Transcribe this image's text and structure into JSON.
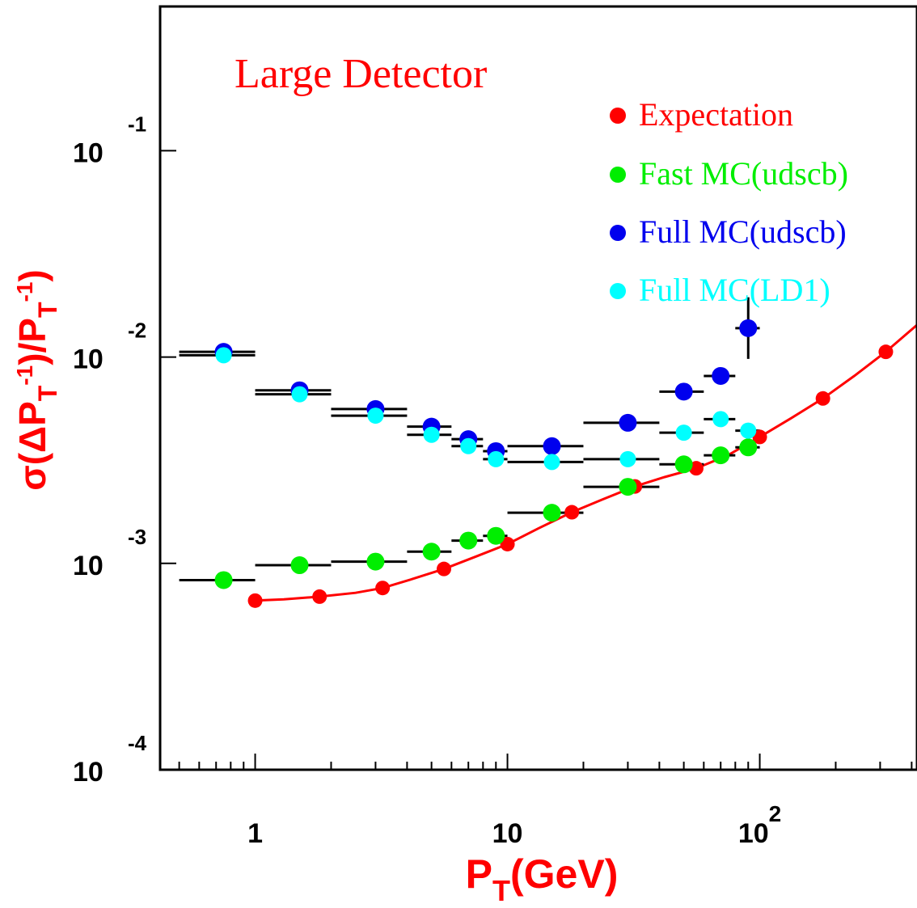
{
  "chart_data": {
    "type": "scatter",
    "title": "Large Detector",
    "xlabel": "P_T(GeV)",
    "ylabel": "σ(ΔP_T^-1)/P_T^-1",
    "xscale": "log",
    "yscale": "log",
    "xlim": [
      0.42,
      420
    ],
    "ylim": [
      0.0001,
      0.5
    ],
    "x_tick_labels": [
      {
        "value": 1,
        "base": "1",
        "exp": ""
      },
      {
        "value": 10,
        "base": "10",
        "exp": ""
      },
      {
        "value": 100,
        "base": "10",
        "exp": "2"
      }
    ],
    "y_tick_labels": [
      {
        "value": 0.0001,
        "base": "10",
        "exp": "-4"
      },
      {
        "value": 0.001,
        "base": "10",
        "exp": "-3"
      },
      {
        "value": 0.01,
        "base": "10",
        "exp": "-2"
      },
      {
        "value": 0.1,
        "base": "10",
        "exp": "-1"
      }
    ],
    "grid": false,
    "legend_position": "top-right",
    "series": [
      {
        "name": "Expectation",
        "color": "#ff0000",
        "x": [
          1,
          1.8,
          3.2,
          5.6,
          10,
          18,
          32,
          56,
          100,
          178,
          316
        ],
        "y": [
          0.00066,
          0.00069,
          0.00076,
          0.00094,
          0.00124,
          0.00177,
          0.00236,
          0.00289,
          0.0041,
          0.0063,
          0.0106
        ],
        "curve": {
          "x": [
            1,
            1.3,
            1.8,
            2.5,
            3.2,
            4.2,
            5.6,
            7.5,
            10,
            13.3,
            18,
            24,
            32,
            42,
            56,
            75,
            100,
            133,
            178,
            237,
            316,
            420
          ],
          "y": [
            0.00066,
            0.00067,
            0.00069,
            0.00072,
            0.00076,
            0.00084,
            0.00094,
            0.00108,
            0.00124,
            0.00148,
            0.00177,
            0.00205,
            0.00236,
            0.00262,
            0.00289,
            0.00335,
            0.0041,
            0.00505,
            0.0063,
            0.0081,
            0.0106,
            0.0143
          ]
        }
      },
      {
        "name": "Fast MC(udscb)",
        "color": "#00ee00",
        "x": [
          0.75,
          1.5,
          3,
          5,
          7,
          9,
          15,
          30,
          50,
          70,
          90
        ],
        "y": [
          0.00083,
          0.00098,
          0.00102,
          0.00114,
          0.00129,
          0.00136,
          0.00176,
          0.00235,
          0.00302,
          0.00334,
          0.00365
        ],
        "x_err": [
          [
            0.5,
            1
          ],
          [
            1,
            2
          ],
          [
            2,
            4
          ],
          [
            4,
            6
          ],
          [
            6,
            8
          ],
          [
            8,
            10
          ],
          [
            10,
            20
          ],
          [
            20,
            40
          ],
          [
            40,
            60
          ],
          [
            60,
            80
          ],
          [
            80,
            100
          ]
        ]
      },
      {
        "name": "Full MC(udscb)",
        "color": "#0000ee",
        "x": [
          0.75,
          1.5,
          3,
          5,
          7,
          9,
          15,
          30,
          50,
          70,
          90
        ],
        "y": [
          0.0106,
          0.0069,
          0.0056,
          0.0046,
          0.004,
          0.0035,
          0.0037,
          0.0048,
          0.0068,
          0.0081,
          0.0138
        ],
        "x_err": [
          [
            0.5,
            1
          ],
          [
            1,
            2
          ],
          [
            2,
            4
          ],
          [
            4,
            6
          ],
          [
            6,
            8
          ],
          [
            8,
            10
          ],
          [
            10,
            20
          ],
          [
            20,
            40
          ],
          [
            40,
            60
          ],
          [
            60,
            80
          ],
          [
            80,
            100
          ]
        ],
        "y_err": [
          null,
          null,
          null,
          null,
          null,
          null,
          null,
          null,
          null,
          null,
          [
            0.0098,
            0.0195
          ]
        ]
      },
      {
        "name": "Full MC(LD1)",
        "color": "#00ffff",
        "x": [
          0.75,
          1.5,
          3,
          5,
          7,
          9,
          15,
          30,
          50,
          70,
          90
        ],
        "y": [
          0.0102,
          0.0066,
          0.0052,
          0.0042,
          0.0037,
          0.0032,
          0.0031,
          0.0032,
          0.0043,
          0.005,
          0.0044
        ],
        "x_err": [
          [
            0.5,
            1
          ],
          [
            1,
            2
          ],
          [
            2,
            4
          ],
          [
            4,
            6
          ],
          [
            6,
            8
          ],
          [
            8,
            10
          ],
          [
            10,
            20
          ],
          [
            20,
            40
          ],
          [
            40,
            60
          ],
          [
            60,
            80
          ],
          [
            80,
            100
          ]
        ]
      }
    ]
  }
}
